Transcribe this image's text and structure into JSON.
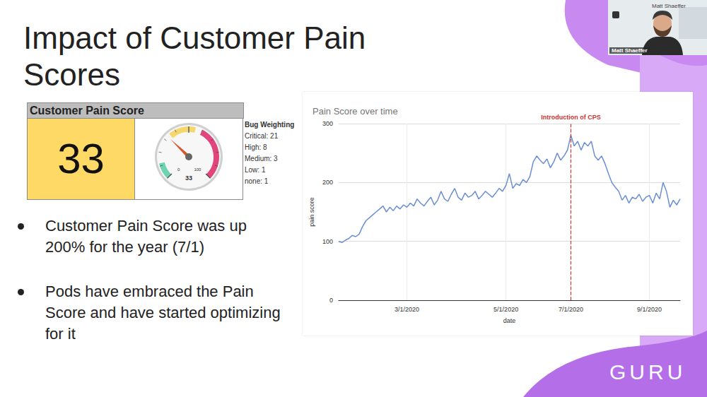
{
  "slide": {
    "title": "Impact of Customer Pain Scores",
    "bullets": [
      "Customer Pain Score was up 200% for the year (7/1)",
      "Pods have embraced the Pain Score and have started optimizing for it"
    ],
    "logo": "GURU",
    "speaker": "Matt Shaeffer"
  },
  "widget": {
    "header": "Customer Pain Score",
    "value": 33,
    "gauge": {
      "min": 0,
      "max": 100
    },
    "weighting_title": "Bug Weighting",
    "weighting": [
      "Critical: 21",
      "High: 8",
      "Medium: 3",
      "Low: 1",
      "none: 1"
    ]
  },
  "chart_data": {
    "type": "line",
    "title": "Pain Score over time",
    "x_label": "date",
    "y_label": "pain score",
    "categories": [
      null,
      null,
      null,
      null,
      null,
      null,
      null,
      null,
      null,
      null,
      null,
      null,
      null,
      null,
      null,
      null,
      null,
      null,
      null,
      null,
      "3/1/2020",
      null,
      null,
      null,
      null,
      null,
      null,
      null,
      null,
      null,
      null,
      null,
      null,
      null,
      null,
      null,
      null,
      null,
      null,
      null,
      null,
      null,
      null,
      null,
      null,
      null,
      null,
      null,
      null,
      "5/1/2020",
      null,
      null,
      null,
      null,
      null,
      null,
      null,
      null,
      null,
      null,
      null,
      null,
      null,
      null,
      null,
      null,
      null,
      null,
      "7/1/2020",
      null,
      null,
      null,
      null,
      null,
      null,
      null,
      null,
      null,
      null,
      null,
      null,
      null,
      null,
      null,
      null,
      null,
      null,
      null,
      null,
      null,
      null,
      "9/1/2020",
      null,
      null,
      null,
      null,
      null,
      null,
      null,
      null,
      null
    ],
    "values": [
      100,
      98,
      102,
      105,
      110,
      108,
      112,
      125,
      135,
      140,
      145,
      150,
      155,
      160,
      150,
      158,
      152,
      160,
      155,
      162,
      158,
      165,
      160,
      172,
      165,
      160,
      168,
      175,
      162,
      170,
      185,
      172,
      168,
      180,
      190,
      175,
      170,
      182,
      175,
      178,
      185,
      172,
      178,
      185,
      180,
      175,
      182,
      190,
      185,
      195,
      215,
      190,
      198,
      195,
      205,
      200,
      210,
      235,
      245,
      238,
      232,
      240,
      225,
      235,
      250,
      238,
      245,
      255,
      280,
      262,
      270,
      255,
      268,
      262,
      270,
      245,
      238,
      245,
      232,
      215,
      200,
      192,
      185,
      170,
      178,
      165,
      175,
      172,
      180,
      168,
      175,
      178,
      165,
      182,
      172,
      200,
      185,
      158,
      170,
      162,
      172
    ],
    "color": "#6b8fd3",
    "ylim": [
      0,
      300
    ],
    "yticks": [
      0,
      100,
      200,
      300
    ],
    "grid": true,
    "annotations": [
      {
        "x": "7/1/2020",
        "label": "Introduction of CPS",
        "color": "#cc3333"
      }
    ]
  }
}
